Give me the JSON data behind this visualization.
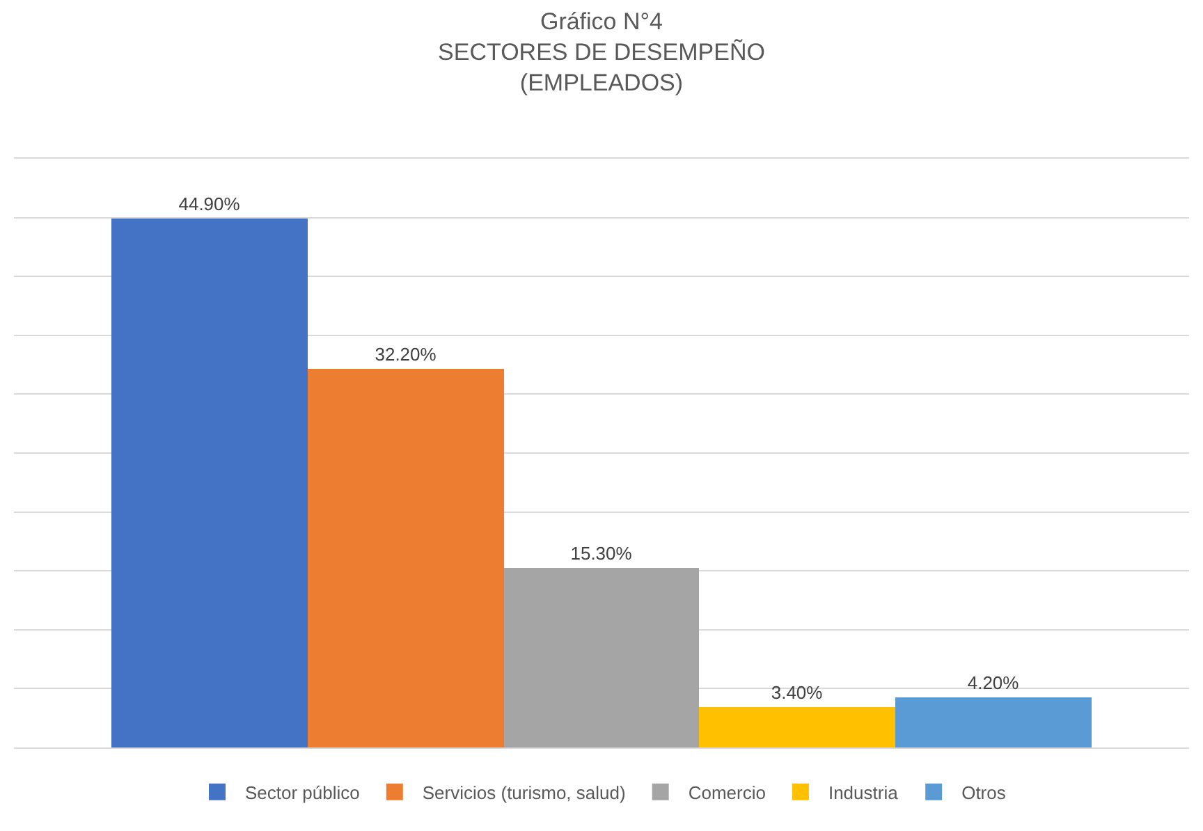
{
  "chart_data": {
    "type": "bar",
    "title": "Gráfico N°4\nSECTORES DE DESEMPEÑO\n(EMPLEADOS)",
    "categories": [
      null
    ],
    "series": [
      {
        "name": "Sector público",
        "color": "#4472c4",
        "values": [
          44.9
        ],
        "value_labels": [
          "44.90%"
        ]
      },
      {
        "name": "Servicios (turismo, salud)",
        "color": "#ed7d31",
        "values": [
          32.2
        ],
        "value_labels": [
          "32.20%"
        ]
      },
      {
        "name": "Comercio",
        "color": "#a5a5a5",
        "values": [
          15.3
        ],
        "value_labels": [
          "15.30%"
        ]
      },
      {
        "name": "Industria",
        "color": "#ffc000",
        "values": [
          3.4
        ],
        "value_labels": [
          "3.40%"
        ]
      },
      {
        "name": "Otros",
        "color": "#5b9bd5",
        "values": [
          4.2
        ],
        "value_labels": [
          "4.20%"
        ]
      }
    ],
    "ylim": [
      0,
      50
    ],
    "yticks": [
      {
        "value": 0,
        "label": null
      },
      {
        "value": 5,
        "label": null
      },
      {
        "value": 10,
        "label": null
      },
      {
        "value": 15,
        "label": null
      },
      {
        "value": 20,
        "label": null
      },
      {
        "value": 25,
        "label": null
      },
      {
        "value": 30,
        "label": null
      },
      {
        "value": 35,
        "label": null
      },
      {
        "value": 40,
        "label": null
      },
      {
        "value": 45,
        "label": null
      }
    ],
    "grid": "y",
    "legend": "bottom"
  }
}
